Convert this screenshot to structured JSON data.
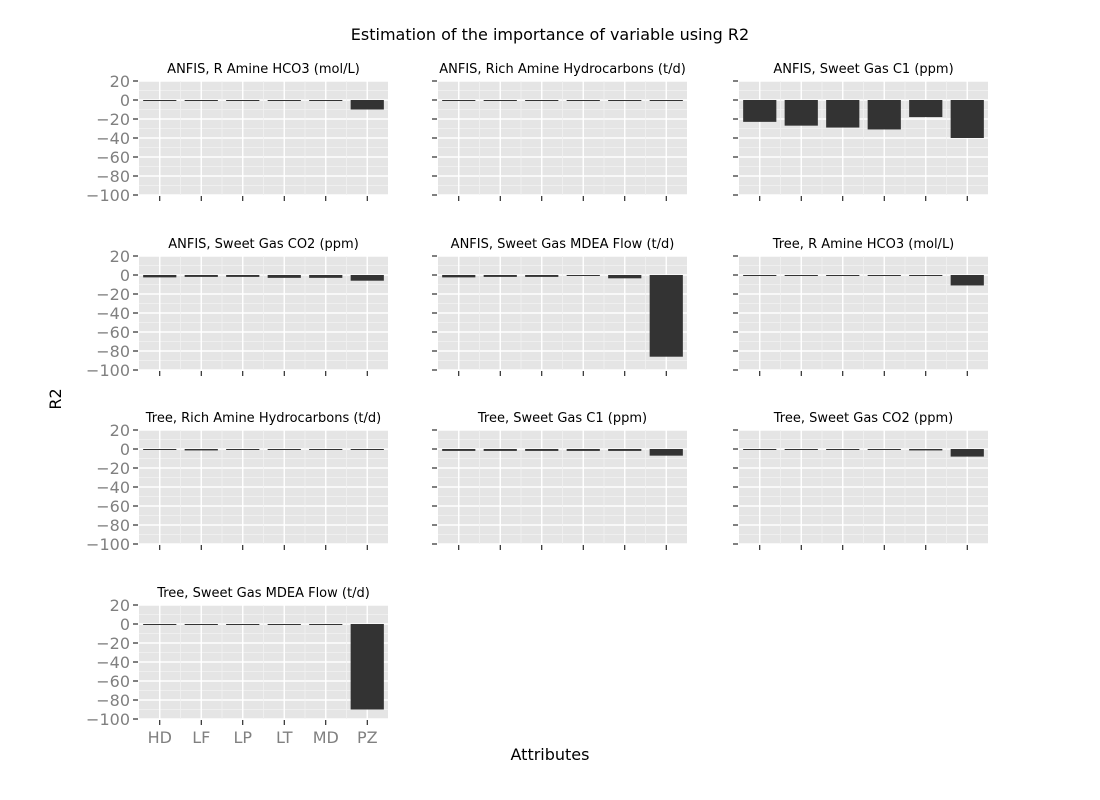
{
  "chart_data": {
    "type": "bar",
    "title": "Estimation of the importance of variable using R2",
    "xlabel": "Attributes",
    "ylabel": "R2",
    "categories": [
      "HD",
      "LF",
      "LP",
      "LT",
      "MD",
      "PZ"
    ],
    "ylim": [
      -100,
      20
    ],
    "yticks": [
      20,
      0,
      -20,
      -40,
      -60,
      -80,
      -100
    ],
    "grid": true,
    "facets": [
      {
        "title": "ANFIS, R Amine HCO3 (mol/L)",
        "values": [
          -0.5,
          -0.5,
          -0.5,
          -0.5,
          -0.5,
          -10
        ]
      },
      {
        "title": "ANFIS, Rich Amine Hydrocarbons (t/d)",
        "values": [
          -1,
          -0.3,
          -0.7,
          -0.7,
          -0.7,
          -0.7
        ]
      },
      {
        "title": "ANFIS, Sweet Gas C1 (ppm)",
        "values": [
          -23,
          -27,
          -29,
          -31,
          -18,
          -40
        ]
      },
      {
        "title": "ANFIS, Sweet Gas CO2 (ppm)",
        "values": [
          -2.5,
          -2,
          -2,
          -3,
          -3,
          -6
        ]
      },
      {
        "title": "ANFIS, Sweet Gas MDEA Flow (t/d)",
        "values": [
          -2.5,
          -2,
          -2,
          -0.5,
          -3.5,
          -86
        ]
      },
      {
        "title": "Tree, R Amine HCO3 (mol/L)",
        "values": [
          -1,
          -0.3,
          -1,
          -1,
          -1,
          -11
        ]
      },
      {
        "title": "Tree, Rich Amine Hydrocarbons (t/d)",
        "values": [
          -0.5,
          -1.5,
          -0.5,
          -0.5,
          -0.5,
          -0.5
        ]
      },
      {
        "title": "Tree, Sweet Gas C1 (ppm)",
        "values": [
          -2,
          -2,
          -2,
          -2,
          -2,
          -7
        ]
      },
      {
        "title": "Tree, Sweet Gas CO2 (ppm)",
        "values": [
          -0.5,
          -0.5,
          -0.5,
          -0.5,
          -1.5,
          -8
        ]
      },
      {
        "title": "Tree, Sweet Gas MDEA Flow (t/d)",
        "values": [
          -0.5,
          -0.5,
          -0.5,
          -0.5,
          -0.5,
          -90
        ]
      }
    ]
  },
  "colors": {
    "panel_background": "#e5e5e5",
    "grid_major": "#ffffff",
    "grid_minor": "#f2f2f2",
    "bar_fill": "#333333",
    "tick_label": "#808080",
    "tick_mark": "#000000"
  }
}
